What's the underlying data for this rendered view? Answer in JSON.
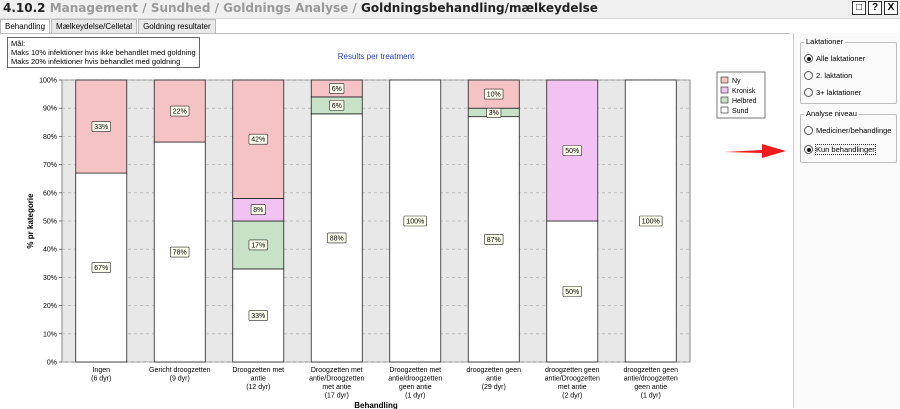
{
  "header": {
    "number": "4.10.2",
    "crumbs": [
      "Management",
      "Sundhed",
      "Goldnings Analyse"
    ],
    "separator": "/",
    "current": "Goldningsbehandling/mælkeydelse",
    "buttons": [
      "□",
      "?",
      "X"
    ]
  },
  "tabs": [
    {
      "label": "Behandling",
      "active": true
    },
    {
      "label": "Mælkeydelse/Celletal",
      "active": false
    },
    {
      "label": "Goldning resultater",
      "active": false
    }
  ],
  "goal_box": {
    "title": "Mål:",
    "lines": [
      "Maks 10% infektioner hvis ikke behandlet med goldning",
      "Maks 20% infektioner hvis behandlet med goldning"
    ]
  },
  "right_panel": {
    "laktationer": {
      "title": "Laktationer",
      "options": [
        {
          "label": "Alle laktationer",
          "selected": true
        },
        {
          "label": "2. laktation",
          "selected": false
        },
        {
          "label": "3+ laktationer",
          "selected": false
        }
      ]
    },
    "analyse_niveau": {
      "title": "Analyse niveau",
      "options": [
        {
          "label": "Mediciner/behandlinge",
          "selected": false
        },
        {
          "label": "Kun behandlinger",
          "selected": true
        }
      ]
    }
  },
  "chart_data": {
    "type": "bar",
    "stacked": true,
    "title": "Results per treatment",
    "xlabel": "Behandling",
    "ylabel": "% pr kategorie",
    "ylim": [
      0,
      100
    ],
    "yticks": [
      "0%",
      "10%",
      "20%",
      "30%",
      "40%",
      "50%",
      "60%",
      "70%",
      "80%",
      "90%",
      "100%"
    ],
    "grid": true,
    "legend_position": "right",
    "colors": {
      "Sund": "#ffffff",
      "Helbred": "#c7e2c7",
      "Kronisk": "#f2c3f2",
      "Ny": "#f5c3c3"
    },
    "legend_order": [
      "Ny",
      "Kronisk",
      "Helbred",
      "Sund"
    ],
    "categories": [
      [
        "Ingen",
        "(6 dyr)"
      ],
      [
        "Gericht droogzetten",
        "(9 dyr)"
      ],
      [
        "Droogzetten met",
        "antie",
        "(12 dyr)"
      ],
      [
        "Droogzetten met",
        "antie/Droogzetten",
        "met antie",
        "(17 dyr)"
      ],
      [
        "Droogzetten met",
        "antie/droogzetten",
        "geen antie",
        "(1 dyr)"
      ],
      [
        "droogzetten geen",
        "antie",
        "(29 dyr)"
      ],
      [
        "droogzetten geen",
        "antie/Droogzetten",
        "met antie",
        "(2 dyr)"
      ],
      [
        "droogzetten geen",
        "antie/droogzetten",
        "geen antie",
        "(1 dyr)"
      ]
    ],
    "series": [
      {
        "name": "Sund",
        "values": [
          67,
          78,
          33,
          88,
          100,
          87,
          50,
          100
        ],
        "labels": [
          "67%",
          "78%",
          "33%",
          "88%",
          "100%",
          "87%",
          "50%",
          "100%"
        ]
      },
      {
        "name": "Helbred",
        "values": [
          0,
          0,
          17,
          6,
          0,
          3,
          0,
          0
        ],
        "labels": [
          "",
          "",
          "17%",
          "6%",
          "",
          "3%",
          "",
          ""
        ]
      },
      {
        "name": "Kronisk",
        "values": [
          0,
          0,
          8,
          0,
          0,
          0,
          50,
          0
        ],
        "labels": [
          "",
          "",
          "8%",
          "",
          "",
          "",
          "50%",
          ""
        ]
      },
      {
        "name": "Ny",
        "values": [
          33,
          22,
          42,
          6,
          0,
          10,
          0,
          0
        ],
        "labels": [
          "33%",
          "22%",
          "42%",
          "6%",
          "",
          "10%",
          "",
          ""
        ]
      }
    ]
  }
}
